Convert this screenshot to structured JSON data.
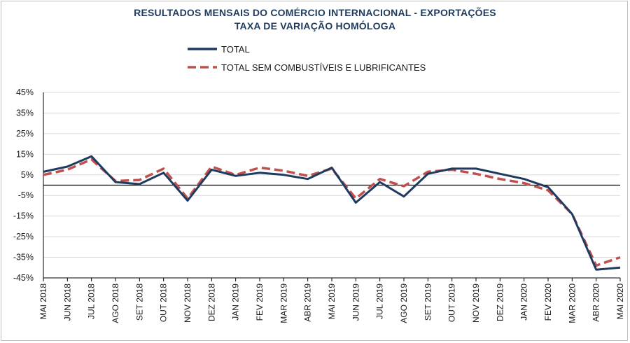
{
  "chart_data": {
    "type": "line",
    "title": "RESULTADOS MENSAIS DO COMÉRCIO INTERNACIONAL  - EXPORTAÇÕES",
    "subtitle": "TAXA DE VARIAÇÃO HOMÓLOGA",
    "xlabel": "",
    "ylabel": "",
    "ylim": [
      -45,
      45
    ],
    "y_ticks": [
      "45%",
      "35%",
      "25%",
      "15%",
      "5%",
      "-5%",
      "-15%",
      "-25%",
      "-35%",
      "-45%"
    ],
    "y_tick_values": [
      45,
      35,
      25,
      15,
      5,
      -5,
      -15,
      -25,
      -35,
      -45
    ],
    "grid": true,
    "legend_position": "top",
    "categories": [
      "MAI 2018",
      "JUN 2018",
      "JUL 2018",
      "AGO 2018",
      "SET 2018",
      "OUT 2018",
      "NOV 2018",
      "DEZ 2018",
      "JAN 2019",
      "FEV 2019",
      "MAR 2019",
      "ABR 2019",
      "MAI 2019",
      "JUN 2019",
      "JUL 2019",
      "AGO 2019",
      "SET 2019",
      "OUT 2019",
      "NOV 2019",
      "DEZ 2019",
      "JAN 2020",
      "FEV 2020",
      "MAR 2020",
      "ABR 2020",
      "MAI 2020"
    ],
    "series": [
      {
        "name": "TOTAL",
        "color": "#1f3a5f",
        "style": "solid",
        "values": [
          6.5,
          9,
          14,
          1.5,
          0.5,
          6,
          -7.5,
          7.5,
          4.5,
          6,
          5,
          3,
          8.5,
          -8.5,
          1.5,
          -5.5,
          5.5,
          8,
          8,
          5.5,
          3,
          -1,
          -14,
          -41,
          -40
        ]
      },
      {
        "name": "TOTAL SEM COMBUSTÍVEIS E LUBRIFICANTES",
        "color": "#c0504d",
        "style": "dashed",
        "values": [
          5,
          7.5,
          12.5,
          2,
          2.5,
          8,
          -6.5,
          9,
          5,
          8.5,
          7,
          4.5,
          8,
          -6.5,
          3,
          -0.5,
          6.5,
          7.5,
          5.5,
          3,
          1,
          -2.5,
          -14,
          -39,
          -35
        ]
      }
    ]
  }
}
